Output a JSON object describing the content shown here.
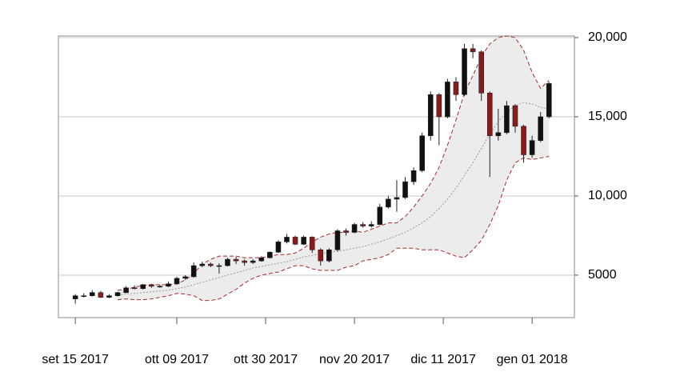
{
  "chart_data": {
    "type": "candlestick",
    "x": [
      "2017-09-15",
      "2017-09-17",
      "2017-09-19",
      "2017-09-21",
      "2017-09-23",
      "2017-09-25",
      "2017-09-27",
      "2017-09-29",
      "2017-10-01",
      "2017-10-03",
      "2017-10-05",
      "2017-10-07",
      "2017-10-09",
      "2017-10-11",
      "2017-10-13",
      "2017-10-15",
      "2017-10-17",
      "2017-10-19",
      "2017-10-21",
      "2017-10-23",
      "2017-10-25",
      "2017-10-27",
      "2017-10-29",
      "2017-10-31",
      "2017-11-02",
      "2017-11-04",
      "2017-11-06",
      "2017-11-08",
      "2017-11-10",
      "2017-11-12",
      "2017-11-14",
      "2017-11-16",
      "2017-11-18",
      "2017-11-20",
      "2017-11-22",
      "2017-11-24",
      "2017-11-26",
      "2017-11-28",
      "2017-11-30",
      "2017-12-02",
      "2017-12-04",
      "2017-12-06",
      "2017-12-08",
      "2017-12-10",
      "2017-12-12",
      "2017-12-14",
      "2017-12-16",
      "2017-12-18",
      "2017-12-20",
      "2017-12-22",
      "2017-12-24",
      "2017-12-26",
      "2017-12-28",
      "2017-12-30",
      "2018-01-01",
      "2018-01-03",
      "2018-01-05"
    ],
    "open": [
      3500,
      3700,
      3700,
      3900,
      3600,
      3700,
      3900,
      4200,
      4150,
      4400,
      4300,
      4300,
      4450,
      4800,
      4900,
      5600,
      5700,
      5600,
      5600,
      6000,
      5900,
      5800,
      5900,
      6100,
      6450,
      7100,
      7400,
      6950,
      7400,
      6600,
      5900,
      6600,
      7800,
      7700,
      8200,
      8100,
      8200,
      9300,
      9800,
      9900,
      10900,
      11600,
      13800,
      16400,
      15000,
      17200,
      16400,
      19300,
      19100,
      16500,
      13800,
      14000,
      15700,
      14400,
      12600,
      13500,
      15000
    ],
    "high": [
      3800,
      3850,
      4050,
      4000,
      3800,
      3950,
      4300,
      4350,
      4450,
      4450,
      4400,
      4600,
      4900,
      5000,
      5800,
      5850,
      5800,
      5750,
      6100,
      6150,
      6000,
      6000,
      6200,
      6500,
      7200,
      7600,
      7500,
      7500,
      7450,
      6700,
      6700,
      7900,
      7950,
      8300,
      8350,
      8400,
      9500,
      10000,
      11000,
      11200,
      11800,
      14000,
      16600,
      16500,
      17400,
      17500,
      19600,
      19600,
      19200,
      16600,
      15500,
      16000,
      15800,
      14500,
      13800,
      15300,
      17200
    ],
    "low": [
      3200,
      3600,
      3650,
      3550,
      3550,
      3650,
      3850,
      4100,
      4100,
      4200,
      4200,
      4250,
      4400,
      4700,
      4850,
      5500,
      5500,
      5100,
      5550,
      5700,
      5600,
      5700,
      5850,
      6050,
      6400,
      7000,
      6900,
      6900,
      6400,
      5600,
      5800,
      6500,
      7500,
      7650,
      8000,
      8000,
      8150,
      9200,
      9000,
      9800,
      10700,
      11500,
      13500,
      13200,
      14900,
      16000,
      16300,
      18700,
      16000,
      11200,
      13500,
      13900,
      14000,
      12100,
      12400,
      13400,
      14900
    ],
    "close": [
      3700,
      3700,
      3900,
      3600,
      3700,
      3900,
      4200,
      4150,
      4400,
      4300,
      4300,
      4450,
      4800,
      4900,
      5600,
      5700,
      5600,
      5600,
      6000,
      5900,
      5800,
      5900,
      6100,
      6450,
      7100,
      7400,
      6950,
      7400,
      6600,
      5900,
      6600,
      7800,
      7700,
      8200,
      8100,
      8200,
      9300,
      9800,
      9900,
      10900,
      11600,
      13800,
      16400,
      15000,
      17200,
      16400,
      19300,
      19100,
      16500,
      13800,
      14000,
      15700,
      14400,
      12600,
      13500,
      15000,
      17100
    ],
    "bollinger": {
      "upper": [
        null,
        null,
        null,
        null,
        null,
        4050,
        4100,
        4250,
        4350,
        4400,
        4400,
        4400,
        4450,
        4700,
        5100,
        5700,
        6000,
        6200,
        6200,
        6200,
        6100,
        6100,
        6100,
        6200,
        6300,
        6300,
        6400,
        6700,
        7100,
        7400,
        7600,
        7700,
        7700,
        7800,
        7700,
        7900,
        8100,
        8300,
        8300,
        8700,
        9300,
        10000,
        10800,
        11800,
        13200,
        14800,
        16500,
        17600,
        18800,
        19600,
        20000,
        20100,
        20000,
        19200,
        17800,
        16800,
        17300
      ],
      "middle": [
        null,
        null,
        null,
        null,
        null,
        3750,
        3800,
        3850,
        3900,
        3950,
        4000,
        4050,
        4150,
        4250,
        4400,
        4550,
        4700,
        4850,
        5000,
        5150,
        5300,
        5450,
        5550,
        5650,
        5750,
        5850,
        6000,
        6150,
        6250,
        6350,
        6450,
        6500,
        6600,
        6700,
        6800,
        6950,
        7100,
        7300,
        7500,
        7700,
        8000,
        8300,
        8700,
        9200,
        9800,
        10500,
        11300,
        12100,
        13000,
        13900,
        14700,
        15300,
        15700,
        15900,
        15800,
        15600,
        15500
      ],
      "lower": [
        null,
        null,
        null,
        null,
        null,
        3450,
        3500,
        3450,
        3450,
        3500,
        3600,
        3700,
        3850,
        3800,
        3700,
        3400,
        3400,
        3500,
        3800,
        4100,
        4500,
        4800,
        5000,
        5100,
        5200,
        5400,
        5600,
        5600,
        5400,
        5300,
        5300,
        5300,
        5500,
        5600,
        5900,
        6000,
        6100,
        6300,
        6700,
        6700,
        6700,
        6600,
        6600,
        6600,
        6400,
        6200,
        6100,
        6600,
        7200,
        8200,
        9400,
        11000,
        12100,
        12400,
        12300,
        12400,
        12500
      ]
    },
    "up_color": "#111111",
    "down_color": "#8b1a1a",
    "band_color": "#a52a2a",
    "band_fill": "#ececec",
    "middle_color": "#999999",
    "xlim": [
      "2017-09-11",
      "2018-01-11"
    ],
    "xticks": [
      {
        "value": "2017-09-15",
        "label": "set 15 2017"
      },
      {
        "value": "2017-10-09",
        "label": "ott 09 2017"
      },
      {
        "value": "2017-10-30",
        "label": "ott 30 2017"
      },
      {
        "value": "2017-11-20",
        "label": "nov 20 2017"
      },
      {
        "value": "2017-12-11",
        "label": "dic 11 2017"
      },
      {
        "value": "2018-01-01",
        "label": "gen 01 2018"
      }
    ],
    "ylim": [
      2320,
      20100
    ],
    "yticks": [
      5000,
      {
        "value": 10000,
        "label": "10,000"
      },
      {
        "value": 15000,
        "label": "15,000"
      },
      {
        "value": 20000,
        "label": "20,000"
      }
    ],
    "grid": true
  }
}
